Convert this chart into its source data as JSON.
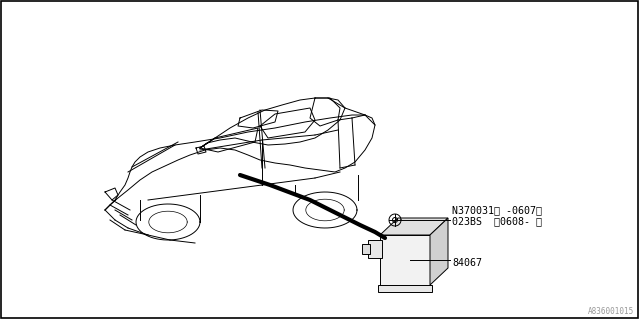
{
  "bg_color": "#ffffff",
  "border_color": "#000000",
  "line_color": "#000000",
  "text_color": "#000000",
  "watermark": "A836001015",
  "part_label_1": "N370031（ -0607）",
  "part_label_2": "023BS  （0608- ）",
  "part_label_3": "84067",
  "figsize": [
    6.4,
    3.2
  ],
  "dpi": 100,
  "car_body_x": [
    130,
    140,
    150,
    160,
    175,
    200,
    230,
    265,
    300,
    330,
    355,
    370,
    375,
    370,
    355,
    340,
    320,
    305,
    295,
    285,
    275,
    265,
    250,
    235,
    220,
    205,
    190,
    175,
    160,
    148,
    138,
    130,
    130
  ],
  "car_body_y": [
    195,
    185,
    178,
    172,
    165,
    155,
    145,
    135,
    128,
    122,
    118,
    115,
    125,
    145,
    162,
    152,
    145,
    140,
    138,
    137,
    137,
    138,
    135,
    130,
    128,
    130,
    135,
    140,
    150,
    162,
    175,
    185,
    195
  ],
  "car_roof_x": [
    220,
    230,
    248,
    270,
    295,
    315,
    330,
    340,
    330,
    315,
    295,
    270,
    248,
    235,
    220
  ],
  "car_roof_y": [
    128,
    118,
    108,
    100,
    96,
    97,
    100,
    108,
    118,
    128,
    135,
    138,
    135,
    130,
    128
  ],
  "lw": 0.7
}
